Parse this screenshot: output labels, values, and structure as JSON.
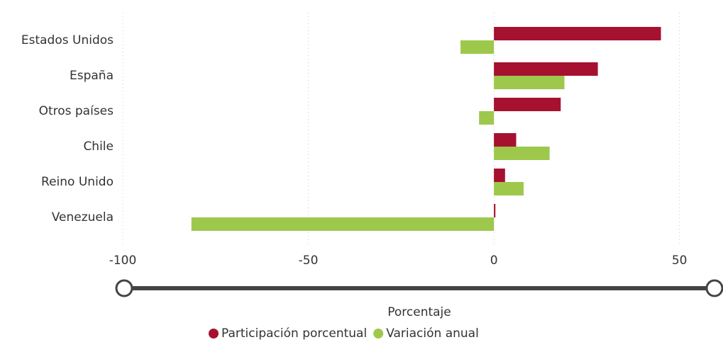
{
  "chart_data": {
    "type": "bar",
    "orientation": "horizontal",
    "categories": [
      "Estados Unidos",
      "España",
      "Otros países",
      "Chile",
      "Reino Unido",
      "Venezuela"
    ],
    "series": [
      {
        "name": "Participación porcentual",
        "color": "#a6112f",
        "values": [
          45,
          28,
          18,
          6,
          3,
          0.4
        ]
      },
      {
        "name": "Variación anual",
        "color": "#9dc84c",
        "values": [
          -9,
          19,
          -4,
          15,
          8,
          -81.5
        ]
      }
    ],
    "xlim": [
      -100,
      60
    ],
    "xticks": [
      -100,
      -50,
      0,
      50
    ],
    "grid": true,
    "xlabel": "Porcentaje",
    "legend": "bottom"
  }
}
